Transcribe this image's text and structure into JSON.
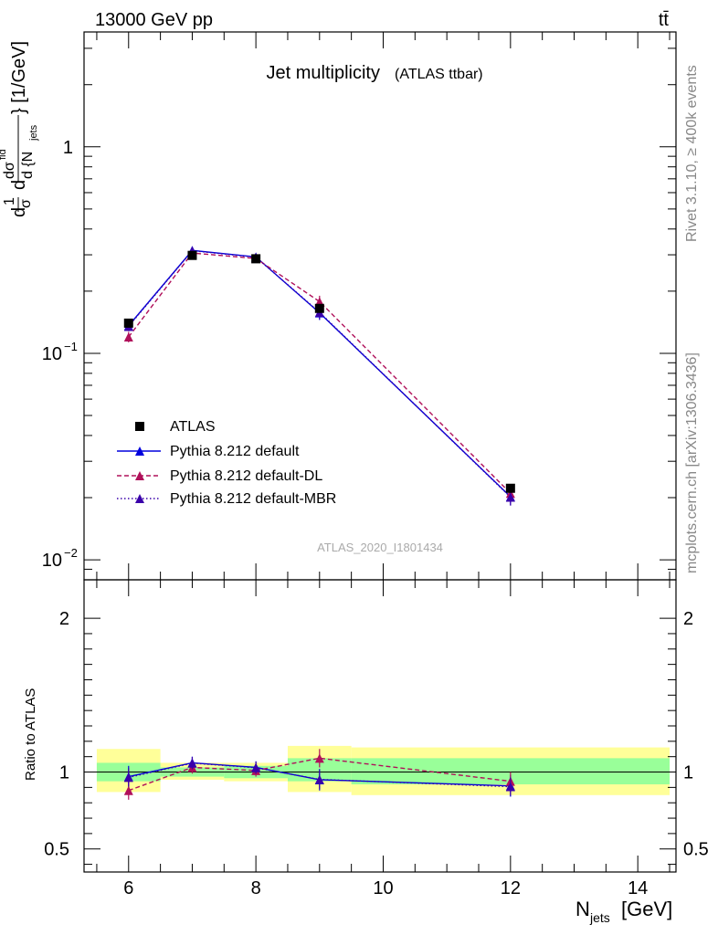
{
  "header": {
    "left": "13000 GeV pp",
    "right": "tt̄"
  },
  "side": {
    "rivet": "Rivet 3.1.10, ≥ 400k events",
    "source": "mcplots.cern.ch [arXiv:1306.3436]"
  },
  "chart_data": [
    {
      "panel": "main",
      "type": "line",
      "title": "Jet multiplicity",
      "subtitle": "(ATLAS ttbar)",
      "analysis_id": "ATLAS_2020_I1801434",
      "xlabel": "N_jets [GeV]",
      "ylabel": "d(1/σ dσ^fid/d{N_jets}) [1/GeV]",
      "yscale": "log",
      "xlim": [
        5.3,
        14.6
      ],
      "ylim": [
        0.008,
        3.6
      ],
      "ytick_labels": [
        "10^-2",
        "10^-1",
        "1"
      ],
      "legend_position": "center-left",
      "series": [
        {
          "name": "ATLAS",
          "color": "#000000",
          "marker": "square",
          "x": [
            6,
            7,
            8,
            9,
            12
          ],
          "y": [
            0.14,
            0.298,
            0.287,
            0.165,
            0.0222
          ]
        },
        {
          "name": "Pythia 8.212 default",
          "color": "#0000dd",
          "style": "solid",
          "marker": "triangle",
          "x": [
            6,
            7,
            8,
            9,
            12
          ],
          "y": [
            0.136,
            0.315,
            0.293,
            0.157,
            0.0202
          ]
        },
        {
          "name": "Pythia 8.212 default-DL",
          "color": "#b0105a",
          "style": "dashed",
          "marker": "triangle",
          "x": [
            6,
            7,
            8,
            9,
            12
          ],
          "y": [
            0.12,
            0.306,
            0.288,
            0.178,
            0.021
          ]
        },
        {
          "name": "Pythia 8.212 default-MBR",
          "color": "#3a00aa",
          "style": "dotted",
          "marker": "triangle",
          "x": [
            6,
            7,
            8,
            9,
            12
          ],
          "y": [
            0.135,
            0.314,
            0.292,
            0.158,
            0.0201
          ]
        }
      ]
    },
    {
      "panel": "ratio",
      "type": "line",
      "ylabel": "Ratio to ATLAS",
      "xlabel": "N_jets [GeV]",
      "xlim": [
        5.3,
        14.6
      ],
      "ylim": [
        0.35,
        2.25
      ],
      "ytick_labels": [
        "0.5",
        "1",
        "2"
      ],
      "xtick_labels": [
        "6",
        "8",
        "10",
        "12",
        "14"
      ],
      "bands": [
        {
          "x": [
            5.5,
            6.5
          ],
          "green": [
            0.94,
            1.06
          ],
          "yellow": [
            0.87,
            1.15
          ]
        },
        {
          "x": [
            6.5,
            7.5
          ],
          "green": [
            0.97,
            1.03
          ],
          "yellow": [
            0.95,
            1.06
          ]
        },
        {
          "x": [
            7.5,
            8.5
          ],
          "green": [
            0.96,
            1.04
          ],
          "yellow": [
            0.94,
            1.06
          ]
        },
        {
          "x": [
            8.5,
            9.5
          ],
          "green": [
            0.94,
            1.09
          ],
          "yellow": [
            0.87,
            1.17
          ]
        },
        {
          "x": [
            9.5,
            14.5
          ],
          "green": [
            0.92,
            1.09
          ],
          "yellow": [
            0.85,
            1.16
          ]
        }
      ],
      "series": [
        {
          "name": "Pythia 8.212 default",
          "color": "#0000dd",
          "style": "solid",
          "x": [
            6,
            7,
            8,
            9,
            12
          ],
          "y": [
            0.97,
            1.06,
            1.03,
            0.95,
            0.91
          ],
          "err": [
            0.07,
            0.04,
            0.04,
            0.07,
            0.07
          ]
        },
        {
          "name": "Pythia 8.212 default-DL",
          "color": "#b0105a",
          "style": "dashed",
          "x": [
            6,
            7,
            8,
            9,
            12
          ],
          "y": [
            0.88,
            1.03,
            1.01,
            1.09,
            0.94
          ],
          "err": [
            0.06,
            0.04,
            0.04,
            0.06,
            0.06
          ]
        },
        {
          "name": "Pythia 8.212 default-MBR",
          "color": "#3a00aa",
          "style": "dotted",
          "x": [
            6,
            7,
            8,
            9,
            12
          ],
          "y": [
            0.965,
            1.058,
            1.028,
            0.952,
            0.905
          ],
          "err": [
            0.06,
            0.04,
            0.04,
            0.06,
            0.06
          ]
        }
      ]
    }
  ]
}
